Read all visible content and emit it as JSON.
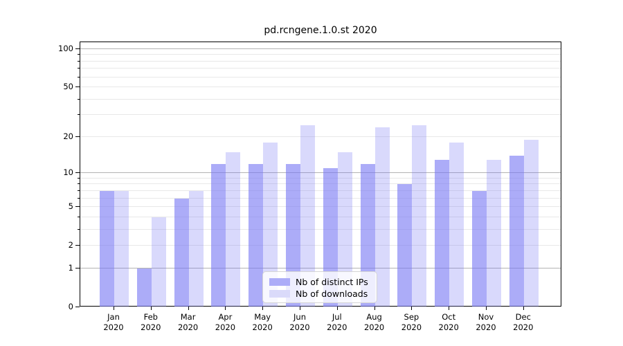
{
  "chart_data": {
    "type": "bar",
    "title": "pd.rcngene.1.0.st 2020",
    "categories": [
      "Jan 2020",
      "Feb 2020",
      "Mar 2020",
      "Apr 2020",
      "May 2020",
      "Jun 2020",
      "Jul 2020",
      "Aug 2020",
      "Sep 2020",
      "Oct 2020",
      "Nov 2020",
      "Dec 2020"
    ],
    "series": [
      {
        "name": "Nb of distinct IPs",
        "color": "#7474f3",
        "opacity": 0.6,
        "solid_hex": "#acacf8",
        "values": [
          7,
          1,
          6,
          12,
          12,
          12,
          11,
          12,
          8,
          13,
          7,
          14
        ]
      },
      {
        "name": "Nb of downloads",
        "color": "#7474f3",
        "opacity": 0.27,
        "solid_hex": "#dadafa",
        "values": [
          7,
          4,
          7,
          15,
          18,
          25,
          15,
          24,
          25,
          18,
          13,
          19
        ]
      }
    ],
    "xlabel": "",
    "ylabel": "",
    "yscale": "log1p",
    "ylim": [
      0,
      113
    ],
    "yticks": [
      0,
      1,
      2,
      5,
      10,
      20,
      50,
      100
    ],
    "ytick_labels": [
      "0",
      "1",
      "2",
      "5",
      "10",
      "20",
      "50",
      "100"
    ],
    "major_gridlines": [
      1,
      10,
      100
    ],
    "minor_gridlines": [
      2,
      3,
      4,
      5,
      6,
      7,
      8,
      9,
      20,
      30,
      40,
      50,
      60,
      70,
      80,
      90
    ],
    "grid": true,
    "legend_position": "lower center"
  },
  "colors": {
    "grid_major": "#b3b3b3",
    "grid_minor": "#e8e8e8",
    "spine": "#000000",
    "text": "#000000"
  }
}
